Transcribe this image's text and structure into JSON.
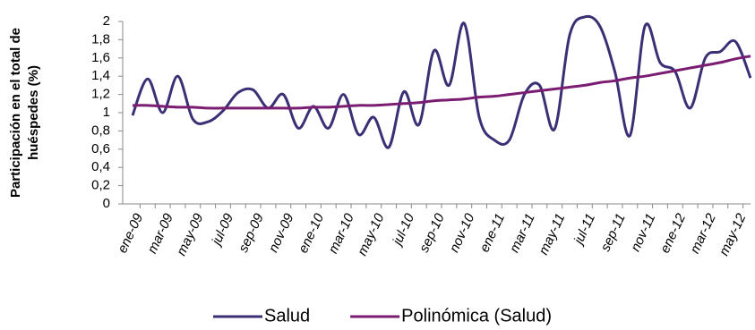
{
  "chart_data": {
    "type": "line",
    "y_label": [
      "Participación en el total de",
      "huéspedes (%)"
    ],
    "categories": [
      "ene-09",
      null,
      "mar-09",
      null,
      "may-09",
      null,
      "jul-09",
      null,
      "sep-09",
      null,
      "nov-09",
      null,
      "ene-10",
      null,
      "mar-10",
      null,
      "may-10",
      null,
      "jul-10",
      null,
      "sep-10",
      null,
      "nov-10",
      null,
      "ene-11",
      null,
      "mar-11",
      null,
      "may-11",
      null,
      "jul-11",
      null,
      "sep-11",
      null,
      "nov-11",
      null,
      "ene-12",
      null,
      "mar-12",
      null,
      "may-12",
      null
    ],
    "series": [
      {
        "name": "Salud",
        "color": "#3d2f75",
        "values": [
          0.97,
          1.37,
          1.0,
          1.4,
          0.93,
          0.9,
          1.02,
          1.22,
          1.25,
          1.05,
          1.2,
          0.83,
          1.07,
          0.83,
          1.2,
          0.76,
          0.95,
          0.62,
          1.23,
          0.87,
          1.68,
          1.3,
          1.98,
          0.95,
          0.7,
          0.7,
          1.2,
          1.3,
          0.82,
          1.85,
          2.05,
          1.95,
          1.45,
          0.75,
          1.95,
          1.55,
          1.45,
          1.05,
          1.6,
          1.67,
          1.78,
          1.38
        ]
      },
      {
        "name": "Polinómica (Salud)",
        "color": "#7b1c73",
        "values": [
          1.08,
          1.08,
          1.07,
          1.06,
          1.06,
          1.05,
          1.05,
          1.05,
          1.05,
          1.05,
          1.05,
          1.05,
          1.06,
          1.06,
          1.07,
          1.08,
          1.08,
          1.09,
          1.1,
          1.11,
          1.13,
          1.14,
          1.15,
          1.17,
          1.18,
          1.2,
          1.22,
          1.24,
          1.26,
          1.28,
          1.3,
          1.33,
          1.35,
          1.38,
          1.4,
          1.43,
          1.46,
          1.49,
          1.52,
          1.55,
          1.59,
          1.62
        ]
      }
    ],
    "ylim": [
      0,
      2
    ],
    "yticks": [
      0,
      {
        "value": 0.2,
        "label": "0,2"
      },
      {
        "value": 0.4,
        "label": "0,4"
      },
      {
        "value": 0.6,
        "label": "0,6"
      },
      {
        "value": 0.8,
        "label": "0,8"
      },
      1,
      {
        "value": 1.2,
        "label": "1,2"
      },
      {
        "value": 1.4,
        "label": "1,4"
      },
      {
        "value": 1.6,
        "label": "1,6"
      },
      {
        "value": 1.8,
        "label": "1,8"
      },
      2
    ],
    "legend": "bottom"
  }
}
